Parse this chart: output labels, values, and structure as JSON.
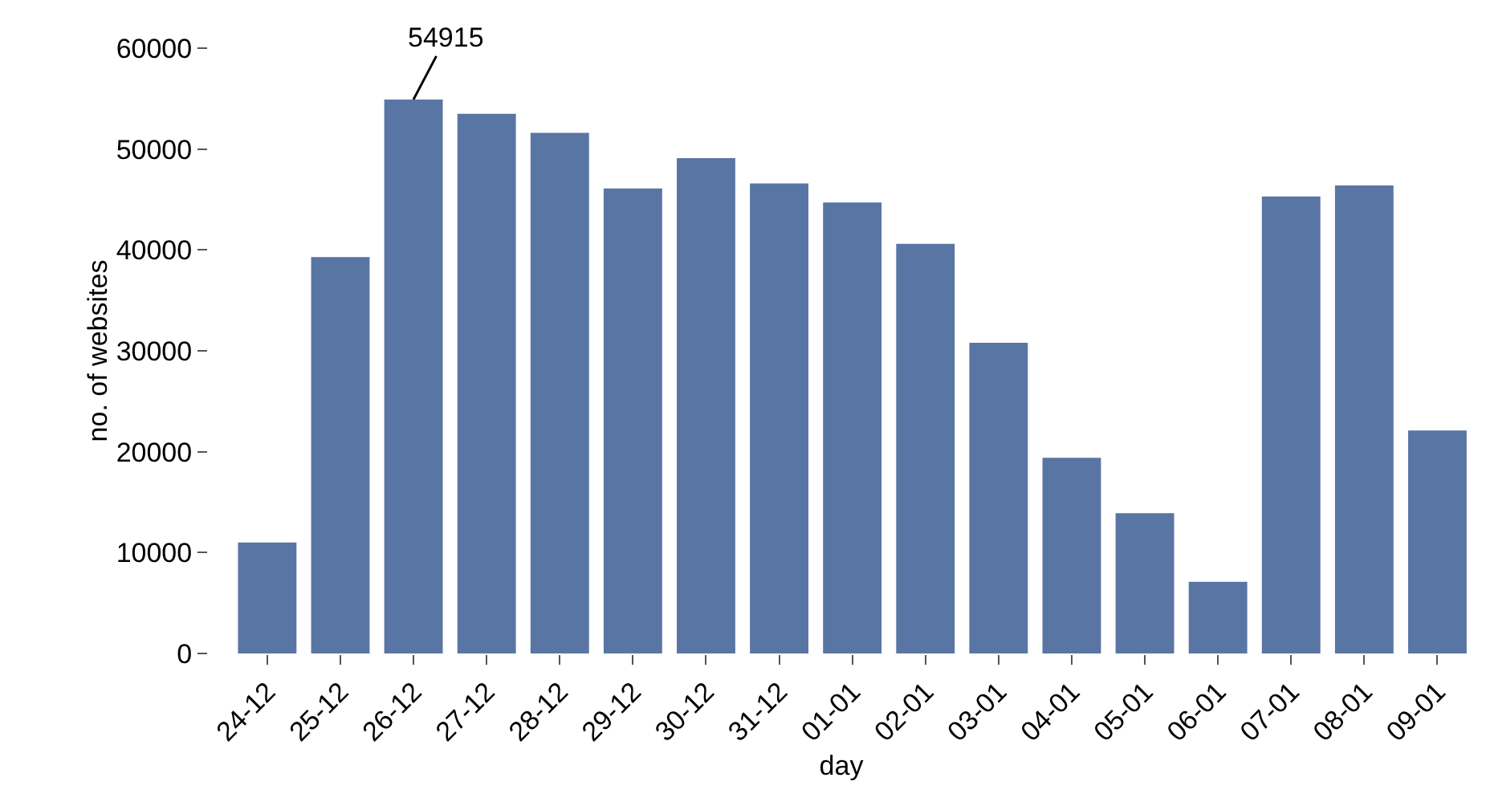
{
  "chart_data": {
    "type": "bar",
    "xlabel": "day",
    "ylabel": "no. of websites",
    "categories": [
      "24-12",
      "25-12",
      "26-12",
      "27-12",
      "28-12",
      "29-12",
      "30-12",
      "31-12",
      "01-01",
      "02-01",
      "03-01",
      "04-01",
      "05-01",
      "06-01",
      "07-01",
      "08-01",
      "09-01"
    ],
    "values": [
      11000,
      39300,
      54915,
      53500,
      51600,
      46100,
      49100,
      46600,
      44700,
      40600,
      30800,
      19400,
      13900,
      7100,
      45300,
      46400,
      22100
    ],
    "color": "#5975a4",
    "ylim": [
      0,
      60000
    ],
    "yticks": [
      0,
      10000,
      20000,
      30000,
      40000,
      50000,
      60000
    ],
    "grid": false,
    "annotations": [
      {
        "text": "54915",
        "x": "26-12",
        "y": 54915
      }
    ]
  }
}
